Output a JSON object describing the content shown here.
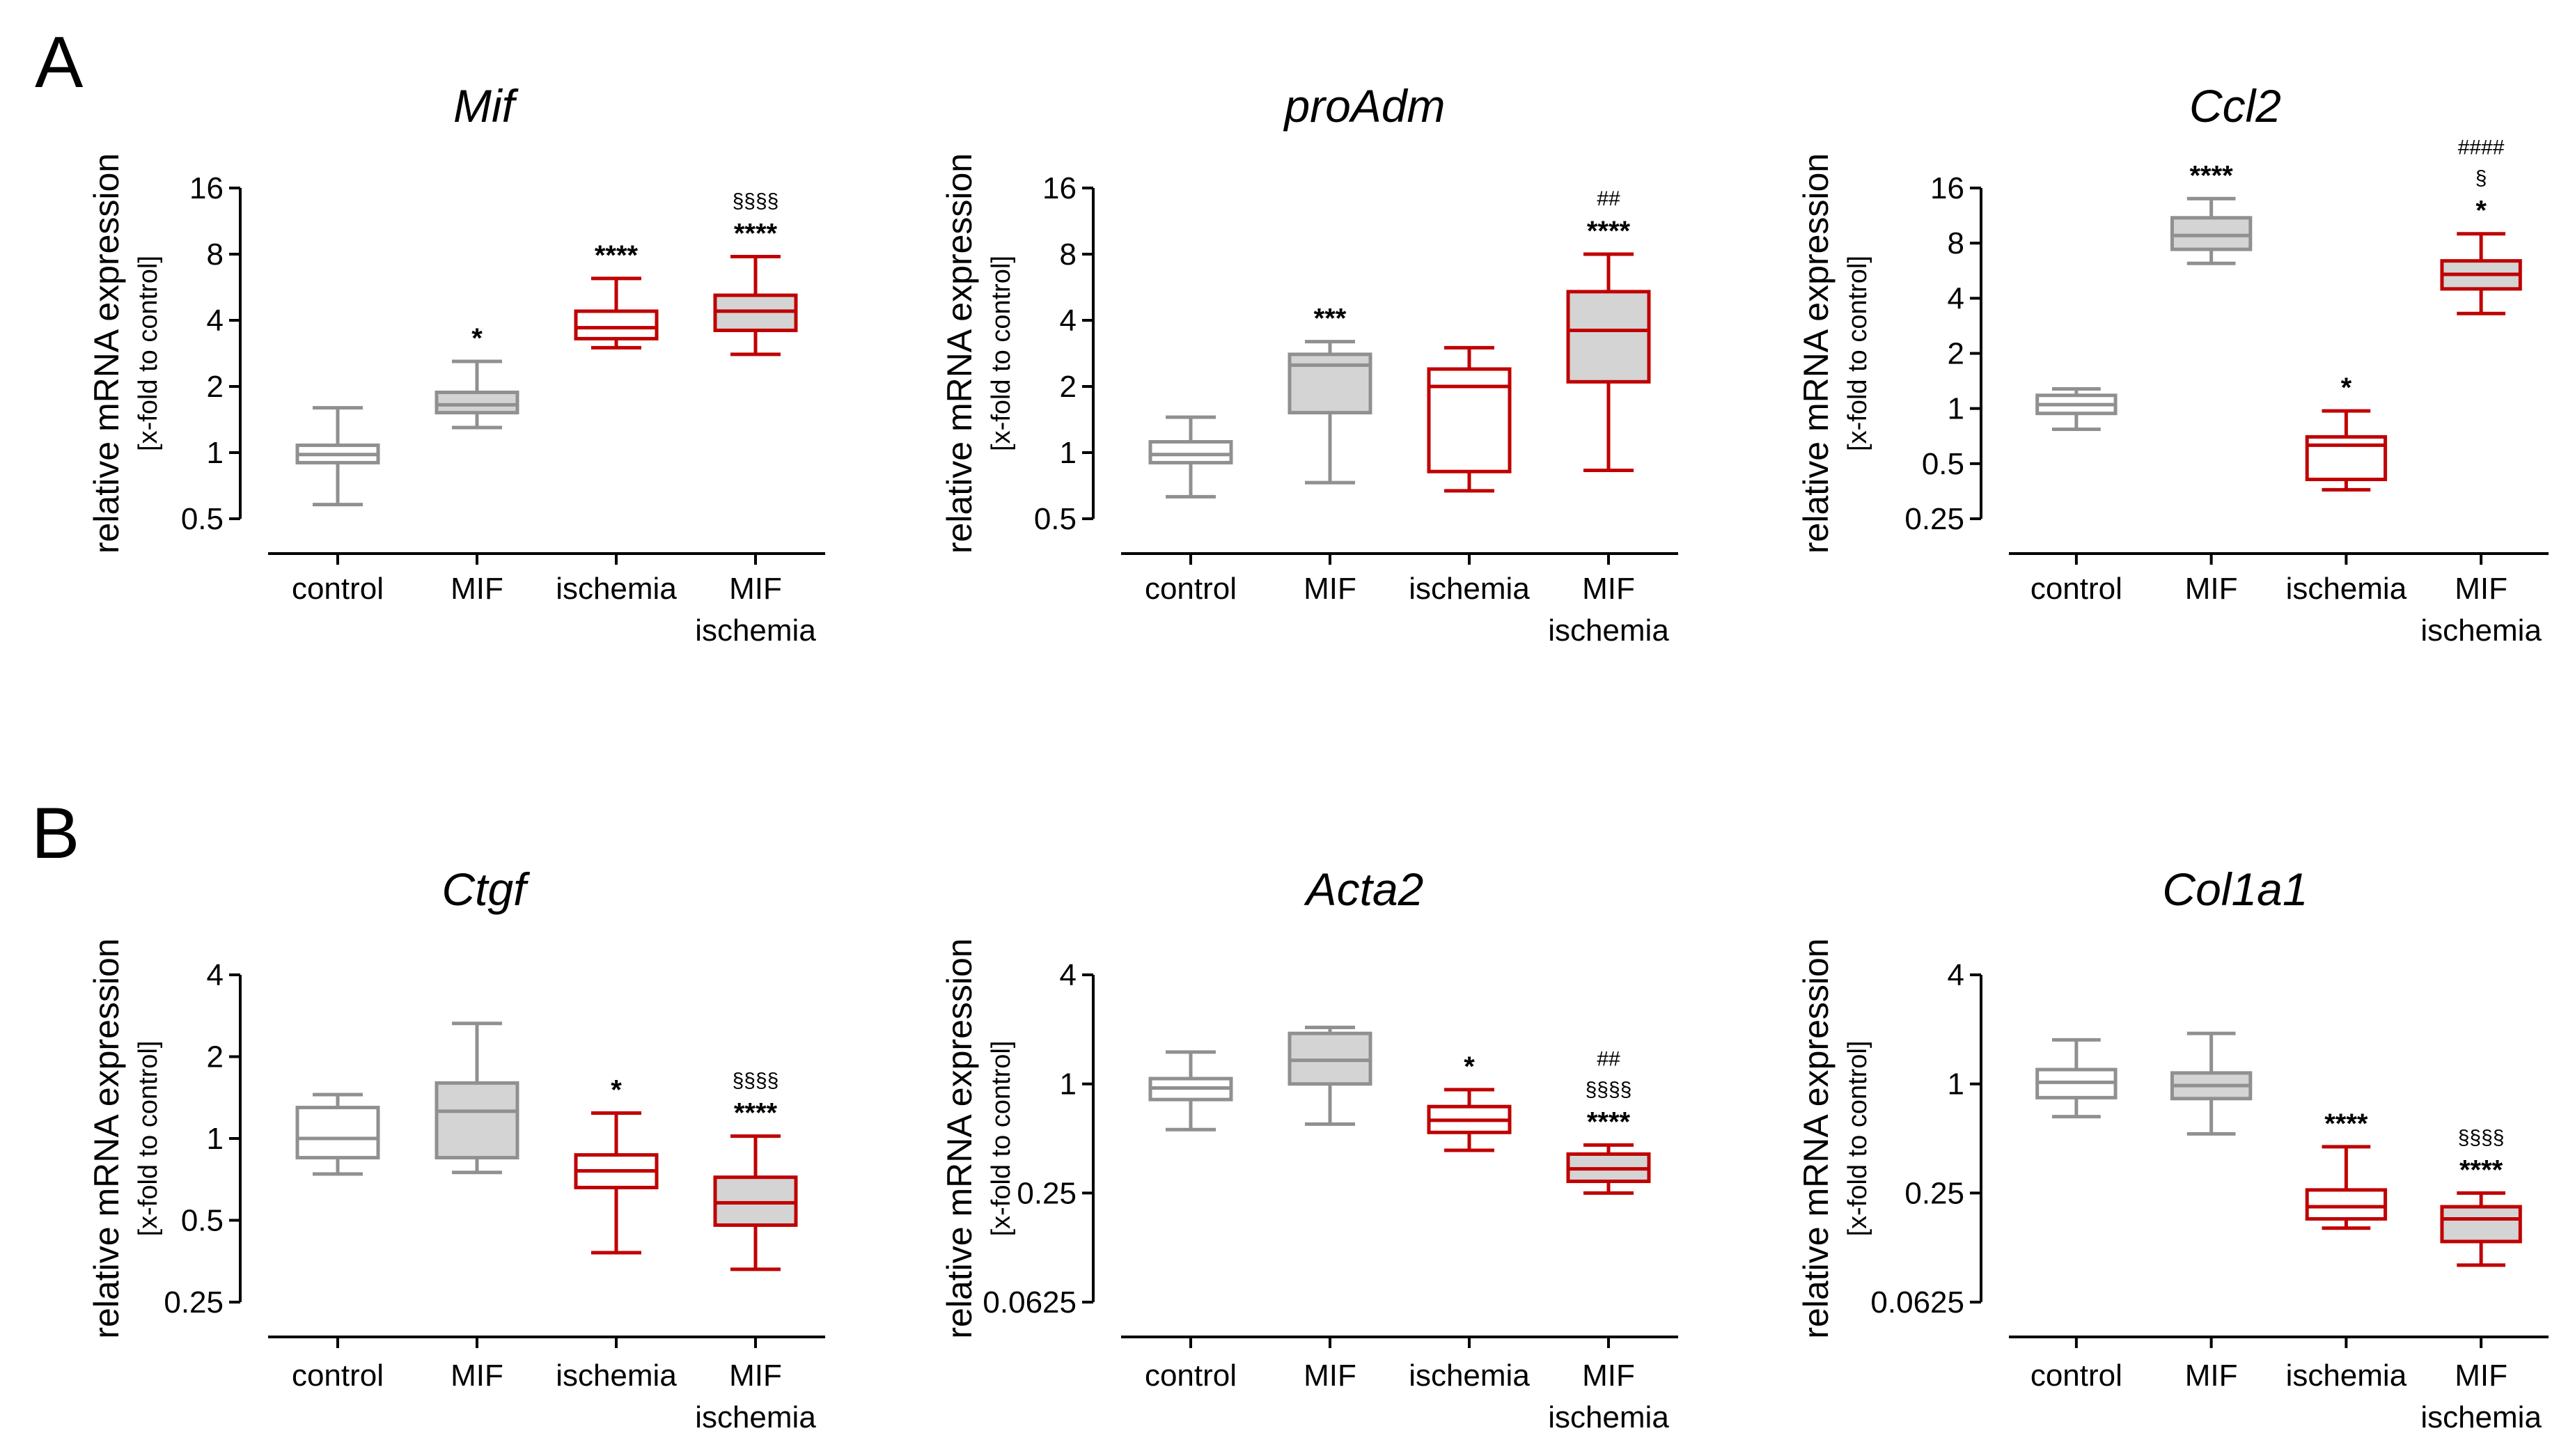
{
  "figure": {
    "panel_labels": [
      "A",
      "B"
    ],
    "y_label": "relative mRNA expression",
    "y_sublabel": "[x-fold to control]",
    "colors": {
      "control": "#909090",
      "ischemia": "#c00000",
      "fill": "#d4d4d4",
      "axis": "#000000"
    }
  },
  "chart_data": [
    {
      "type": "box",
      "panel": "A",
      "title": "Mif",
      "scale": "log2",
      "ylim": [
        0.5,
        16
      ],
      "yticks": [
        0.5,
        1,
        2,
        4,
        8,
        16
      ],
      "ytick_labels": [
        "0.5",
        "1",
        "2",
        "4",
        "8",
        "16"
      ],
      "categories": [
        [
          "control"
        ],
        [
          "MIF"
        ],
        [
          "ischemia"
        ],
        [
          "MIF",
          "ischemia"
        ]
      ],
      "boxes": [
        {
          "min": 0.58,
          "q1": 0.9,
          "median": 0.98,
          "q3": 1.08,
          "max": 1.6,
          "group": "control",
          "filled": false,
          "annotations": []
        },
        {
          "min": 1.3,
          "q1": 1.52,
          "median": 1.65,
          "q3": 1.88,
          "max": 2.6,
          "group": "control",
          "filled": true,
          "annotations": [
            "*"
          ]
        },
        {
          "min": 3.0,
          "q1": 3.3,
          "median": 3.7,
          "q3": 4.4,
          "max": 6.2,
          "group": "ischemia",
          "filled": false,
          "annotations": [
            "****"
          ]
        },
        {
          "min": 2.8,
          "q1": 3.6,
          "median": 4.4,
          "q3": 5.2,
          "max": 7.8,
          "group": "ischemia",
          "filled": true,
          "annotations": [
            "****",
            "§§§§"
          ]
        }
      ]
    },
    {
      "type": "box",
      "panel": "A",
      "title": "proAdm",
      "scale": "log2",
      "ylim": [
        0.5,
        16
      ],
      "yticks": [
        0.5,
        1,
        2,
        4,
        8,
        16
      ],
      "ytick_labels": [
        "0.5",
        "1",
        "2",
        "4",
        "8",
        "16"
      ],
      "categories": [
        [
          "control"
        ],
        [
          "MIF"
        ],
        [
          "ischemia"
        ],
        [
          "MIF",
          "ischemia"
        ]
      ],
      "boxes": [
        {
          "min": 0.63,
          "q1": 0.9,
          "median": 0.98,
          "q3": 1.12,
          "max": 1.45,
          "group": "control",
          "filled": false,
          "annotations": []
        },
        {
          "min": 0.73,
          "q1": 1.52,
          "median": 2.5,
          "q3": 2.8,
          "max": 3.2,
          "group": "control",
          "filled": true,
          "annotations": [
            "***"
          ]
        },
        {
          "min": 0.67,
          "q1": 0.82,
          "median": 2.0,
          "q3": 2.4,
          "max": 3.0,
          "group": "ischemia",
          "filled": false,
          "annotations": []
        },
        {
          "min": 0.83,
          "q1": 2.1,
          "median": 3.6,
          "q3": 5.4,
          "max": 8.0,
          "group": "ischemia",
          "filled": true,
          "annotations": [
            "****",
            "##"
          ]
        }
      ]
    },
    {
      "type": "box",
      "panel": "A",
      "title": "Ccl2",
      "scale": "log2",
      "ylim": [
        0.25,
        16
      ],
      "yticks": [
        0.25,
        0.5,
        1,
        2,
        4,
        8,
        16
      ],
      "ytick_labels": [
        "0.25",
        "0.5",
        "1",
        "2",
        "4",
        "8",
        "16"
      ],
      "categories": [
        [
          "control"
        ],
        [
          "MIF"
        ],
        [
          "ischemia"
        ],
        [
          "MIF",
          "ischemia"
        ]
      ],
      "boxes": [
        {
          "min": 0.77,
          "q1": 0.94,
          "median": 1.05,
          "q3": 1.18,
          "max": 1.28,
          "group": "control",
          "filled": false,
          "annotations": []
        },
        {
          "min": 6.2,
          "q1": 7.4,
          "median": 8.8,
          "q3": 11.0,
          "max": 14.0,
          "group": "control",
          "filled": true,
          "annotations": [
            "****"
          ]
        },
        {
          "min": 0.36,
          "q1": 0.41,
          "median": 0.63,
          "q3": 0.7,
          "max": 0.97,
          "group": "ischemia",
          "filled": false,
          "annotations": [
            "*"
          ]
        },
        {
          "min": 3.3,
          "q1": 4.5,
          "median": 5.4,
          "q3": 6.4,
          "max": 9.0,
          "group": "ischemia",
          "filled": true,
          "annotations": [
            "*",
            "§",
            "####"
          ]
        }
      ]
    },
    {
      "type": "box",
      "panel": "B",
      "title": "Ctgf",
      "scale": "log2",
      "ylim": [
        0.25,
        4
      ],
      "yticks": [
        0.25,
        0.5,
        1,
        2,
        4
      ],
      "ytick_labels": [
        "0.25",
        "0.5",
        "1",
        "2",
        "4"
      ],
      "categories": [
        [
          "control"
        ],
        [
          "MIF"
        ],
        [
          "ischemia"
        ],
        [
          "MIF",
          "ischemia"
        ]
      ],
      "boxes": [
        {
          "min": 0.74,
          "q1": 0.85,
          "median": 1.0,
          "q3": 1.3,
          "max": 1.45,
          "group": "control",
          "filled": false,
          "annotations": []
        },
        {
          "min": 0.75,
          "q1": 0.85,
          "median": 1.26,
          "q3": 1.6,
          "max": 2.65,
          "group": "control",
          "filled": true,
          "annotations": []
        },
        {
          "min": 0.38,
          "q1": 0.66,
          "median": 0.76,
          "q3": 0.87,
          "max": 1.24,
          "group": "ischemia",
          "filled": false,
          "annotations": [
            "*"
          ]
        },
        {
          "min": 0.33,
          "q1": 0.48,
          "median": 0.58,
          "q3": 0.72,
          "max": 1.02,
          "group": "ischemia",
          "filled": true,
          "annotations": [
            "****",
            "§§§§"
          ]
        }
      ]
    },
    {
      "type": "box",
      "panel": "B",
      "title": "Acta2",
      "scale": "log2",
      "ylim": [
        0.0625,
        4
      ],
      "yticks": [
        0.0625,
        0.25,
        1,
        4
      ],
      "ytick_labels": [
        "0.0625",
        "0.25",
        "1",
        "4"
      ],
      "categories": [
        [
          "control"
        ],
        [
          "MIF"
        ],
        [
          "ischemia"
        ],
        [
          "MIF",
          "ischemia"
        ]
      ],
      "boxes": [
        {
          "min": 0.56,
          "q1": 0.82,
          "median": 0.95,
          "q3": 1.07,
          "max": 1.5,
          "group": "control",
          "filled": false,
          "annotations": []
        },
        {
          "min": 0.6,
          "q1": 1.0,
          "median": 1.35,
          "q3": 1.9,
          "max": 2.05,
          "group": "control",
          "filled": true,
          "annotations": []
        },
        {
          "min": 0.43,
          "q1": 0.54,
          "median": 0.63,
          "q3": 0.75,
          "max": 0.93,
          "group": "ischemia",
          "filled": false,
          "annotations": [
            "*"
          ]
        },
        {
          "min": 0.25,
          "q1": 0.29,
          "median": 0.34,
          "q3": 0.41,
          "max": 0.46,
          "group": "ischemia",
          "filled": true,
          "annotations": [
            "****",
            "§§§§",
            "##"
          ]
        }
      ]
    },
    {
      "type": "box",
      "panel": "B",
      "title": "Col1a1",
      "scale": "log2",
      "ylim": [
        0.0625,
        4
      ],
      "yticks": [
        0.0625,
        0.25,
        1,
        4
      ],
      "ytick_labels": [
        "0.0625",
        "0.25",
        "1",
        "4"
      ],
      "categories": [
        [
          "control"
        ],
        [
          "MIF"
        ],
        [
          "ischemia"
        ],
        [
          "MIF",
          "ischemia"
        ]
      ],
      "boxes": [
        {
          "min": 0.66,
          "q1": 0.84,
          "median": 1.02,
          "q3": 1.2,
          "max": 1.75,
          "group": "control",
          "filled": false,
          "annotations": []
        },
        {
          "min": 0.53,
          "q1": 0.83,
          "median": 0.98,
          "q3": 1.15,
          "max": 1.9,
          "group": "control",
          "filled": true,
          "annotations": []
        },
        {
          "min": 0.16,
          "q1": 0.18,
          "median": 0.21,
          "q3": 0.26,
          "max": 0.45,
          "group": "ischemia",
          "filled": false,
          "annotations": [
            "****"
          ]
        },
        {
          "min": 0.1,
          "q1": 0.135,
          "median": 0.18,
          "q3": 0.21,
          "max": 0.25,
          "group": "ischemia",
          "filled": true,
          "annotations": [
            "****",
            "§§§§"
          ]
        }
      ]
    }
  ]
}
